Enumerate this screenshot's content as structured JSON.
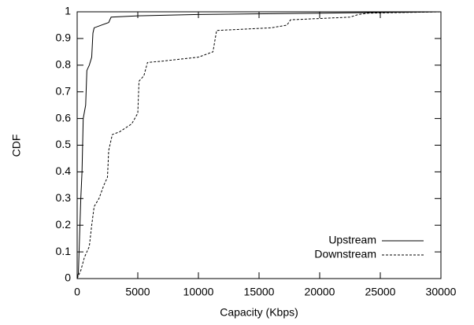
{
  "chart_data": {
    "type": "line",
    "x_label": "Capacity (Kbps)",
    "y_label": "CDF",
    "xlim": [
      0,
      30000
    ],
    "xticks": [
      0,
      5000,
      10000,
      15000,
      20000,
      25000,
      30000
    ],
    "ylim": [
      0,
      1
    ],
    "yticks": [
      0,
      0.1,
      0.2,
      0.3,
      0.4,
      0.5,
      0.6,
      0.7,
      0.8,
      0.9,
      1
    ],
    "grid": false,
    "legend": "bottom-right",
    "series": [
      {
        "name": "Upstream",
        "color": "#000000",
        "dash": "solid",
        "x": [
          0,
          100,
          300,
          400,
          500,
          700,
          800,
          1000,
          1200,
          1300,
          1400,
          2000,
          2600,
          2800,
          5000,
          10000,
          20000,
          30000
        ],
        "values": [
          0,
          0.02,
          0.3,
          0.4,
          0.6,
          0.65,
          0.78,
          0.8,
          0.83,
          0.92,
          0.94,
          0.95,
          0.96,
          0.98,
          0.985,
          0.99,
          0.995,
          1
        ]
      },
      {
        "name": "Downstream",
        "color": "#000000",
        "dash": "dashed",
        "x": [
          0,
          300,
          600,
          1000,
          1200,
          1400,
          1800,
          2200,
          2500,
          2600,
          2900,
          3500,
          4500,
          5000,
          5100,
          5500,
          5800,
          7000,
          10000,
          11200,
          11500,
          16000,
          17300,
          17600,
          22500,
          23200,
          24000,
          30000
        ],
        "values": [
          0,
          0.03,
          0.08,
          0.12,
          0.2,
          0.27,
          0.3,
          0.35,
          0.38,
          0.48,
          0.54,
          0.55,
          0.58,
          0.62,
          0.74,
          0.76,
          0.81,
          0.815,
          0.83,
          0.85,
          0.93,
          0.94,
          0.95,
          0.97,
          0.98,
          0.99,
          0.995,
          1
        ]
      }
    ]
  }
}
